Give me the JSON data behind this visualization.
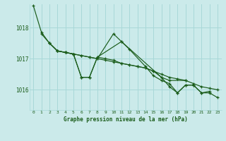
{
  "title": "Graphe pression niveau de la mer (hPa)",
  "background_color": "#cbeaea",
  "grid_color": "#a8d8d8",
  "line_color": "#1a5c1a",
  "text_color": "#1a5c1a",
  "xlim": [
    -0.5,
    23.5
  ],
  "ylim": [
    1015.35,
    1018.75
  ],
  "yticks": [
    1016,
    1017,
    1018
  ],
  "xticks": [
    0,
    1,
    2,
    3,
    4,
    5,
    6,
    7,
    8,
    9,
    10,
    11,
    12,
    13,
    14,
    15,
    16,
    17,
    18,
    19,
    20,
    21,
    22,
    23
  ],
  "s1_x": [
    0,
    1,
    2,
    3,
    4,
    5,
    6,
    7,
    8,
    9,
    10,
    11,
    12,
    13,
    14,
    15,
    16,
    17,
    18,
    19,
    20,
    21,
    22,
    23
  ],
  "s1_y": [
    1018.7,
    1017.85,
    1017.5,
    1017.25,
    1017.2,
    1017.15,
    1017.1,
    1017.05,
    1017.0,
    1016.95,
    1016.9,
    1016.85,
    1016.8,
    1016.75,
    1016.7,
    1016.6,
    1016.5,
    1016.4,
    1016.35,
    1016.3,
    1016.2,
    1016.1,
    1016.05,
    1016.0
  ],
  "s2_x": [
    1,
    2,
    3,
    4,
    5,
    6,
    7,
    8,
    10,
    11,
    12,
    14,
    15,
    16,
    17,
    18,
    19,
    20,
    21,
    22
  ],
  "s2_y": [
    1017.8,
    1017.5,
    1017.25,
    1017.2,
    1017.15,
    1017.1,
    1017.05,
    1017.0,
    1017.8,
    1017.55,
    1017.3,
    1016.75,
    1016.45,
    1016.3,
    1016.2,
    1015.9,
    1016.15,
    1016.15,
    1015.9,
    1015.95
  ],
  "s3_x": [
    2,
    3,
    4,
    5,
    6,
    7,
    8,
    11,
    16,
    17,
    19
  ],
  "s3_y": [
    1017.5,
    1017.25,
    1017.2,
    1017.15,
    1016.4,
    1016.4,
    1017.05,
    1017.55,
    1016.4,
    1016.3,
    1016.3
  ],
  "s4_x": [
    3,
    4,
    5,
    6,
    7,
    8,
    9,
    10,
    11,
    12,
    13,
    14,
    15,
    16,
    17,
    18,
    19,
    20,
    21,
    22,
    23
  ],
  "s4_y": [
    1017.25,
    1017.2,
    1017.15,
    1016.4,
    1016.4,
    1017.05,
    1017.0,
    1016.95,
    1016.85,
    1016.8,
    1016.75,
    1016.7,
    1016.6,
    1016.4,
    1016.1,
    1015.9,
    1016.15,
    1016.15,
    1015.9,
    1015.9,
    1015.75
  ]
}
